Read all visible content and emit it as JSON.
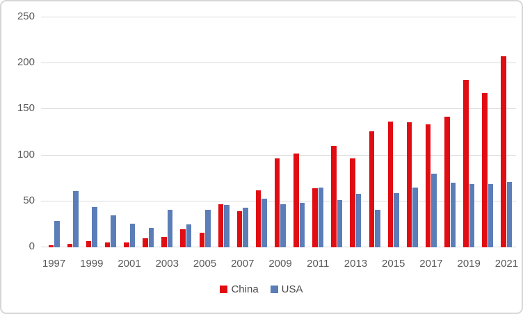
{
  "chart_data": {
    "type": "bar",
    "title": "",
    "xlabel": "",
    "ylabel": "",
    "categories": [
      "1997",
      "1998",
      "1999",
      "2000",
      "2001",
      "2002",
      "2003",
      "2004",
      "2005",
      "2006",
      "2007",
      "2008",
      "2009",
      "2010",
      "2011",
      "2012",
      "2013",
      "2014",
      "2015",
      "2016",
      "2017",
      "2018",
      "2019",
      "2020",
      "2021"
    ],
    "series": [
      {
        "name": "China",
        "color": "#e00d13",
        "values": [
          2,
          4,
          7,
          5,
          5,
          10,
          11,
          20,
          16,
          47,
          39,
          62,
          97,
          102,
          64,
          110,
          97,
          126,
          137,
          136,
          134,
          142,
          182,
          168,
          208
        ]
      },
      {
        "name": "USA",
        "color": "#5b7db8",
        "values": [
          29,
          61,
          44,
          35,
          26,
          21,
          41,
          25,
          41,
          46,
          43,
          53,
          47,
          48,
          65,
          51,
          58,
          41,
          59,
          65,
          80,
          70,
          69,
          69,
          71
        ]
      }
    ],
    "ylim": [
      0,
      250
    ],
    "yticks": [
      0,
      50,
      100,
      150,
      200,
      250
    ],
    "xtick_labels": [
      "1997",
      "1999",
      "2001",
      "2003",
      "2005",
      "2007",
      "2009",
      "2011",
      "2013",
      "2015",
      "2017",
      "2019",
      "2021"
    ],
    "grid": "horizontal",
    "legend_position": "bottom",
    "colors": {
      "gridline": "#d9d9d9",
      "axis_label": "#595959",
      "legend_text": "#4c4c4c",
      "background": "#ffffff",
      "frame_border": "#d6d6d6"
    }
  }
}
